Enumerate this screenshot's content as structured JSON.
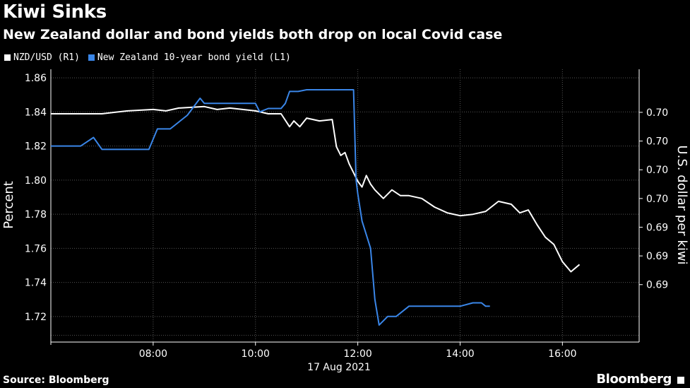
{
  "header": {
    "title": "Kiwi Sinks",
    "subtitle": "New Zealand dollar and bond yields both drop on local Covid case"
  },
  "footer": {
    "source": "Source: Bloomberg",
    "brand": "Bloomberg"
  },
  "colors": {
    "nzd_series": "#ffffff",
    "bond_series": "#3a86e8",
    "gridline": "#555555",
    "background": "#000000"
  },
  "chart_data": {
    "type": "line",
    "xlabel": "17 Aug 2021",
    "ylabel_left": "Percent",
    "ylabel_right": "U.S. dollar per kiwi",
    "ylim_left": [
      1.705,
      1.865
    ],
    "ylim_right": [
      0.686,
      0.705
    ],
    "xlim": [
      "06:00",
      "17:30"
    ],
    "x_ticks": [
      "08:00",
      "10:00",
      "12:00",
      "14:00",
      "16:00"
    ],
    "y_ticks_left": [
      "1.86",
      "1.84",
      "1.82",
      "1.80",
      "1.78",
      "1.76",
      "1.74",
      "1.72"
    ],
    "y_ticks_right": [
      "0.70",
      "0.70",
      "0.70",
      "0.70",
      "0.69",
      "0.69",
      "0.69"
    ],
    "y_ticks_right_values": [
      0.702,
      0.7,
      0.698,
      0.696,
      0.694,
      0.692,
      0.69
    ],
    "grid": true,
    "legend_position": "top-left",
    "series": [
      {
        "name": "NZD/USD (R1)",
        "axis": "right",
        "x": [
          "06:00",
          "06:30",
          "07:00",
          "07:15",
          "07:30",
          "08:00",
          "08:15",
          "08:30",
          "09:00",
          "09:15",
          "09:30",
          "10:00",
          "10:15",
          "10:30",
          "10:40",
          "10:45",
          "10:52",
          "11:00",
          "11:15",
          "11:30",
          "11:35",
          "11:40",
          "11:45",
          "11:50",
          "11:55",
          "12:00",
          "12:05",
          "12:10",
          "12:15",
          "12:20",
          "12:30",
          "12:40",
          "12:50",
          "13:00",
          "13:15",
          "13:30",
          "13:45",
          "14:00",
          "14:15",
          "14:30",
          "14:45",
          "15:00",
          "15:10",
          "15:20",
          "15:30",
          "15:40",
          "15:50",
          "16:00",
          "16:10",
          "16:20"
        ],
        "values": [
          0.7019,
          0.7019,
          0.7019,
          0.702,
          0.7021,
          0.7022,
          0.7021,
          0.7023,
          0.7024,
          0.7022,
          0.7023,
          0.7021,
          0.7019,
          0.7019,
          0.701,
          0.7014,
          0.701,
          0.7016,
          0.7014,
          0.7015,
          0.6996,
          0.699,
          0.6992,
          0.6984,
          0.6978,
          0.6972,
          0.6968,
          0.6976,
          0.697,
          0.6966,
          0.696,
          0.6966,
          0.6962,
          0.6962,
          0.696,
          0.6954,
          0.695,
          0.6948,
          0.6949,
          0.6951,
          0.6958,
          0.6956,
          0.695,
          0.6952,
          0.6942,
          0.6933,
          0.6928,
          0.6916,
          0.6909,
          0.6914
        ]
      },
      {
        "name": "New Zealand 10-year bond yield (L1)",
        "axis": "left",
        "x": [
          "06:00",
          "06:35",
          "06:50",
          "07:00",
          "07:30",
          "07:55",
          "08:05",
          "08:20",
          "08:40",
          "08:55",
          "09:00",
          "10:00",
          "10:05",
          "10:15",
          "10:30",
          "10:35",
          "10:40",
          "10:45",
          "10:50",
          "11:00",
          "11:30",
          "11:55",
          "11:58",
          "12:00",
          "12:05",
          "12:15",
          "12:20",
          "12:25",
          "12:35",
          "12:40",
          "12:45",
          "13:00",
          "13:30",
          "14:00",
          "14:15",
          "14:25",
          "14:30",
          "14:35"
        ],
        "values": [
          1.82,
          1.82,
          1.825,
          1.818,
          1.818,
          1.818,
          1.83,
          1.83,
          1.838,
          1.848,
          1.845,
          1.845,
          1.84,
          1.842,
          1.842,
          1.845,
          1.852,
          1.852,
          1.852,
          1.853,
          1.853,
          1.853,
          1.8,
          1.792,
          1.776,
          1.76,
          1.73,
          1.715,
          1.72,
          1.72,
          1.72,
          1.726,
          1.726,
          1.726,
          1.728,
          1.728,
          1.726,
          1.726
        ]
      }
    ]
  }
}
